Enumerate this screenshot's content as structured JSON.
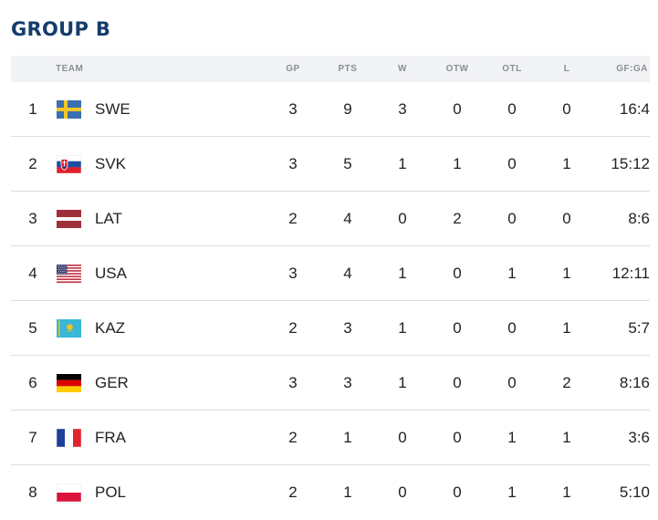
{
  "title": "GROUP B",
  "headers": {
    "team": "TEAM",
    "gp": "GP",
    "pts": "PTS",
    "w": "W",
    "otw": "OTW",
    "otl": "OTL",
    "l": "L",
    "gfga": "GF:GA"
  },
  "rows": [
    {
      "rank": "1",
      "team": "SWE",
      "flag": "sweden-flag-icon",
      "gp": "3",
      "pts": "9",
      "w": "3",
      "otw": "0",
      "otl": "0",
      "l": "0",
      "gfga": "16:4"
    },
    {
      "rank": "2",
      "team": "SVK",
      "flag": "slovakia-flag-icon",
      "gp": "3",
      "pts": "5",
      "w": "1",
      "otw": "1",
      "otl": "0",
      "l": "1",
      "gfga": "15:12"
    },
    {
      "rank": "3",
      "team": "LAT",
      "flag": "latvia-flag-icon",
      "gp": "2",
      "pts": "4",
      "w": "0",
      "otw": "2",
      "otl": "0",
      "l": "0",
      "gfga": "8:6"
    },
    {
      "rank": "4",
      "team": "USA",
      "flag": "usa-flag-icon",
      "gp": "3",
      "pts": "4",
      "w": "1",
      "otw": "0",
      "otl": "1",
      "l": "1",
      "gfga": "12:11"
    },
    {
      "rank": "5",
      "team": "KAZ",
      "flag": "kazakhstan-flag-icon",
      "gp": "2",
      "pts": "3",
      "w": "1",
      "otw": "0",
      "otl": "0",
      "l": "1",
      "gfga": "5:7"
    },
    {
      "rank": "6",
      "team": "GER",
      "flag": "germany-flag-icon",
      "gp": "3",
      "pts": "3",
      "w": "1",
      "otw": "0",
      "otl": "0",
      "l": "2",
      "gfga": "8:16"
    },
    {
      "rank": "7",
      "team": "FRA",
      "flag": "france-flag-icon",
      "gp": "2",
      "pts": "1",
      "w": "0",
      "otw": "0",
      "otl": "1",
      "l": "1",
      "gfga": "3:6"
    },
    {
      "rank": "8",
      "team": "POL",
      "flag": "poland-flag-icon",
      "gp": "2",
      "pts": "1",
      "w": "0",
      "otw": "0",
      "otl": "1",
      "l": "1",
      "gfga": "5:10"
    }
  ],
  "colors": {
    "title": "#143d6b",
    "header_bg": "#f2f3f5",
    "header_text": "#8a8f96"
  }
}
